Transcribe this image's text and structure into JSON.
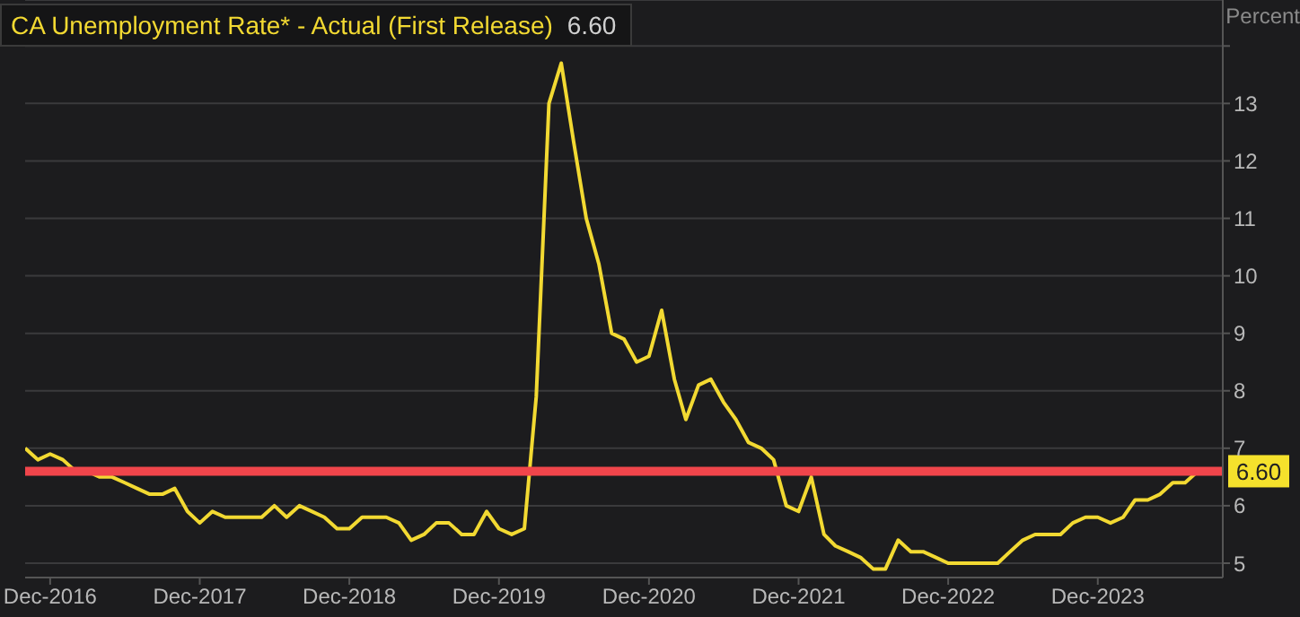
{
  "chart_data": {
    "type": "line",
    "title": "CA Unemployment Rate* - Actual (First Release)",
    "subtitle": "6.60",
    "ylabel": "Percent",
    "x": [
      "2016-10",
      "2016-11",
      "2016-12",
      "2017-01",
      "2017-02",
      "2017-03",
      "2017-04",
      "2017-05",
      "2017-06",
      "2017-07",
      "2017-08",
      "2017-09",
      "2017-10",
      "2017-11",
      "2017-12",
      "2018-01",
      "2018-02",
      "2018-03",
      "2018-04",
      "2018-05",
      "2018-06",
      "2018-07",
      "2018-08",
      "2018-09",
      "2018-10",
      "2018-11",
      "2018-12",
      "2019-01",
      "2019-02",
      "2019-03",
      "2019-04",
      "2019-05",
      "2019-06",
      "2019-07",
      "2019-08",
      "2019-09",
      "2019-10",
      "2019-11",
      "2019-12",
      "2020-01",
      "2020-02",
      "2020-03",
      "2020-04",
      "2020-05",
      "2020-06",
      "2020-07",
      "2020-08",
      "2020-09",
      "2020-10",
      "2020-11",
      "2020-12",
      "2021-01",
      "2021-02",
      "2021-03",
      "2021-04",
      "2021-05",
      "2021-06",
      "2021-07",
      "2021-08",
      "2021-09",
      "2021-10",
      "2021-11",
      "2021-12",
      "2022-01",
      "2022-02",
      "2022-03",
      "2022-04",
      "2022-05",
      "2022-06",
      "2022-07",
      "2022-08",
      "2022-09",
      "2022-10",
      "2022-11",
      "2022-12",
      "2023-01",
      "2023-02",
      "2023-03",
      "2023-04",
      "2023-05",
      "2023-06",
      "2023-07",
      "2023-08",
      "2023-09",
      "2023-10",
      "2023-11",
      "2023-12",
      "2024-01",
      "2024-02",
      "2024-03",
      "2024-04",
      "2024-05",
      "2024-06",
      "2024-07",
      "2024-08"
    ],
    "series": [
      {
        "color": "#f2d932",
        "values": [
          7.0,
          6.8,
          6.9,
          6.8,
          6.6,
          6.6,
          6.5,
          6.5,
          6.4,
          6.3,
          6.2,
          6.2,
          6.3,
          5.9,
          5.7,
          5.9,
          5.8,
          5.8,
          5.8,
          5.8,
          6.0,
          5.8,
          6.0,
          5.9,
          5.8,
          5.6,
          5.6,
          5.8,
          5.8,
          5.8,
          5.7,
          5.4,
          5.5,
          5.7,
          5.7,
          5.5,
          5.5,
          5.9,
          5.6,
          5.5,
          5.6,
          7.9,
          13.0,
          13.7,
          12.3,
          11.0,
          10.2,
          9.0,
          8.9,
          8.5,
          8.6,
          9.4,
          8.2,
          7.5,
          8.1,
          8.2,
          7.8,
          7.5,
          7.1,
          7.0,
          6.8,
          6.0,
          5.9,
          6.5,
          5.5,
          5.3,
          5.2,
          5.1,
          4.9,
          4.9,
          5.4,
          5.2,
          5.2,
          5.1,
          5.0,
          5.0,
          5.0,
          5.0,
          5.0,
          5.2,
          5.4,
          5.5,
          5.5,
          5.5,
          5.7,
          5.8,
          5.8,
          5.7,
          5.8,
          6.1,
          6.1,
          6.2,
          6.4,
          6.4,
          6.6
        ]
      }
    ],
    "xlim": [
      "2016-10",
      "2024-10"
    ],
    "xticks": [
      {
        "value": "2016-12",
        "label": "Dec-2016"
      },
      {
        "value": "2017-12",
        "label": "Dec-2017"
      },
      {
        "value": "2018-12",
        "label": "Dec-2018"
      },
      {
        "value": "2019-12",
        "label": "Dec-2019"
      },
      {
        "value": "2020-12",
        "label": "Dec-2020"
      },
      {
        "value": "2021-12",
        "label": "Dec-2021"
      },
      {
        "value": "2022-12",
        "label": "Dec-2022"
      },
      {
        "value": "2023-12",
        "label": "Dec-2023"
      }
    ],
    "ylim": [
      4.75,
      14.8
    ],
    "yticks": [
      5,
      6,
      7,
      8,
      9,
      10,
      11,
      12,
      13,
      {
        "value": 14,
        "label": null
      }
    ],
    "ref_lines": [
      {
        "axis": "y",
        "value": 6.6,
        "label": "6.60",
        "color": "#f0454b"
      }
    ],
    "grid": "y",
    "marker": "none",
    "line_style": "solid",
    "legend": false
  }
}
